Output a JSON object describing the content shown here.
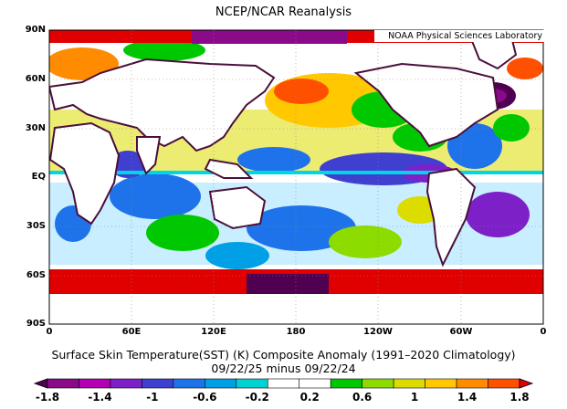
{
  "title": "NCEP/NCAR Reanalysis",
  "credit": "NOAA Physical Sciences Laboratory",
  "caption_line1": "Surface Skin Temperature(SST) (K) Composite Anomaly (1991–2020 Climatology)",
  "caption_line2": "09/22/25 minus 09/22/24",
  "lat_labels": [
    "90N",
    "60N",
    "30N",
    "EQ",
    "30S",
    "60S",
    "90S"
  ],
  "lon_labels": [
    "0",
    "60E",
    "120E",
    "180",
    "120W",
    "60W",
    "0"
  ],
  "colorbar": {
    "labels": [
      "-1.8",
      "-1.4",
      "-1",
      "-0.6",
      "-0.2",
      "0.2",
      "0.6",
      "1",
      "1.4",
      "1.8"
    ],
    "colors": [
      "#500050",
      "#8a0a8a",
      "#b400b4",
      "#7d20c8",
      "#3f3fd0",
      "#1e73ea",
      "#00a0e6",
      "#00d2d2",
      "#ffffff",
      "#ffffff",
      "#00c800",
      "#8cdc00",
      "#dcdc00",
      "#ffc800",
      "#ff8c00",
      "#ff5000",
      "#e10000"
    ]
  },
  "colors": {
    "continent_outline": "#4a0f3a",
    "land_fill": "#ffffff",
    "equator_band": "#00d6e6"
  }
}
